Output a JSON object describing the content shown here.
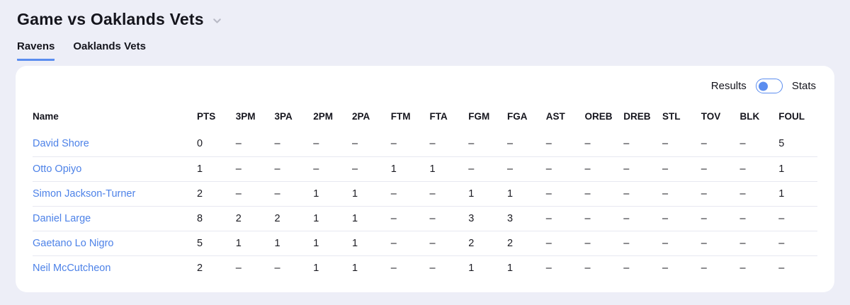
{
  "page": {
    "title": "Game vs Oaklands Vets"
  },
  "tabs": [
    {
      "label": "Ravens",
      "active": true
    },
    {
      "label": "Oaklands Vets",
      "active": false
    }
  ],
  "card": {
    "toggle": {
      "left_label": "Results",
      "right_label": "Stats",
      "state": "left"
    },
    "table": {
      "columns": [
        "Name",
        "PTS",
        "3PM",
        "3PA",
        "2PM",
        "2PA",
        "FTM",
        "FTA",
        "FGM",
        "FGA",
        "AST",
        "OREB",
        "DREB",
        "STL",
        "TOV",
        "BLK",
        "FOUL"
      ],
      "rows": [
        {
          "name": "David Shore",
          "stats": [
            "0",
            "–",
            "–",
            "–",
            "–",
            "–",
            "–",
            "–",
            "–",
            "–",
            "–",
            "–",
            "–",
            "–",
            "–",
            "5"
          ]
        },
        {
          "name": "Otto Opiyo",
          "stats": [
            "1",
            "–",
            "–",
            "–",
            "–",
            "1",
            "1",
            "–",
            "–",
            "–",
            "–",
            "–",
            "–",
            "–",
            "–",
            "1"
          ]
        },
        {
          "name": "Simon Jackson-Turner",
          "stats": [
            "2",
            "–",
            "–",
            "1",
            "1",
            "–",
            "–",
            "1",
            "1",
            "–",
            "–",
            "–",
            "–",
            "–",
            "–",
            "1"
          ]
        },
        {
          "name": "Daniel Large",
          "stats": [
            "8",
            "2",
            "2",
            "1",
            "1",
            "–",
            "–",
            "3",
            "3",
            "–",
            "–",
            "–",
            "–",
            "–",
            "–",
            "–"
          ]
        },
        {
          "name": "Gaetano Lo Nigro",
          "stats": [
            "5",
            "1",
            "1",
            "1",
            "1",
            "–",
            "–",
            "2",
            "2",
            "–",
            "–",
            "–",
            "–",
            "–",
            "–",
            "–"
          ]
        },
        {
          "name": "Neil McCutcheon",
          "stats": [
            "2",
            "–",
            "–",
            "1",
            "1",
            "–",
            "–",
            "1",
            "1",
            "–",
            "–",
            "–",
            "–",
            "–",
            "–",
            "–"
          ]
        }
      ]
    }
  },
  "colors": {
    "page_background": "#edeef7",
    "card_background": "#ffffff",
    "accent_blue": "#5b8def",
    "link_blue": "#4d82e8",
    "text_dark": "#15151d",
    "divider": "#e7e8f1",
    "chevron_gray": "#b9bac6"
  }
}
